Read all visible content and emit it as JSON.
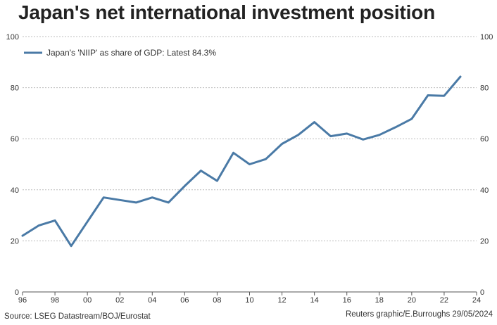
{
  "title": "Japan's net international investment position",
  "source": "Source: LSEG Datastream/BOJ/Eurostat",
  "credit": "Reuters graphic/E.Burroughs 29/05/2024",
  "colors": {
    "line": "#4a7aa6",
    "grid": "#bdbdbd",
    "text": "#333333"
  },
  "chart_data": {
    "type": "line",
    "title": "Japan's net international investment position",
    "xlabel": "",
    "ylabel": "",
    "x": [
      1996,
      1997,
      1998,
      1999,
      2000,
      2001,
      2002,
      2003,
      2004,
      2005,
      2006,
      2007,
      2008,
      2009,
      2010,
      2011,
      2012,
      2013,
      2014,
      2015,
      2016,
      2017,
      2018,
      2019,
      2020,
      2021,
      2022,
      2023
    ],
    "series": [
      {
        "name": "Japan's 'NIIP' as share of GDP: Latest 84.3%",
        "values": [
          22.0,
          26.0,
          28.0,
          18.0,
          27.5,
          37.0,
          36.0,
          35.0,
          37.0,
          35.0,
          41.5,
          47.5,
          43.5,
          54.5,
          50.0,
          52.0,
          58.0,
          61.5,
          66.5,
          61.0,
          62.0,
          59.7,
          61.5,
          64.5,
          67.8,
          77.0,
          76.8,
          84.3
        ]
      }
    ],
    "xlim": [
      1996,
      2024
    ],
    "ylim": [
      0,
      100
    ],
    "xticks": [
      1996,
      1998,
      2000,
      2002,
      2004,
      2006,
      2008,
      2010,
      2012,
      2014,
      2016,
      2018,
      2020,
      2022,
      2024
    ],
    "xtick_labels": [
      "96",
      "98",
      "00",
      "02",
      "04",
      "06",
      "08",
      "10",
      "12",
      "14",
      "16",
      "18",
      "20",
      "22",
      "24"
    ],
    "yticks": [
      0,
      20,
      40,
      60,
      80,
      100
    ],
    "ytick_labels": [
      "0",
      "20",
      "40",
      "60",
      "80",
      "100"
    ],
    "grid": true,
    "dual_y_axis": true,
    "legend": "top-left"
  }
}
